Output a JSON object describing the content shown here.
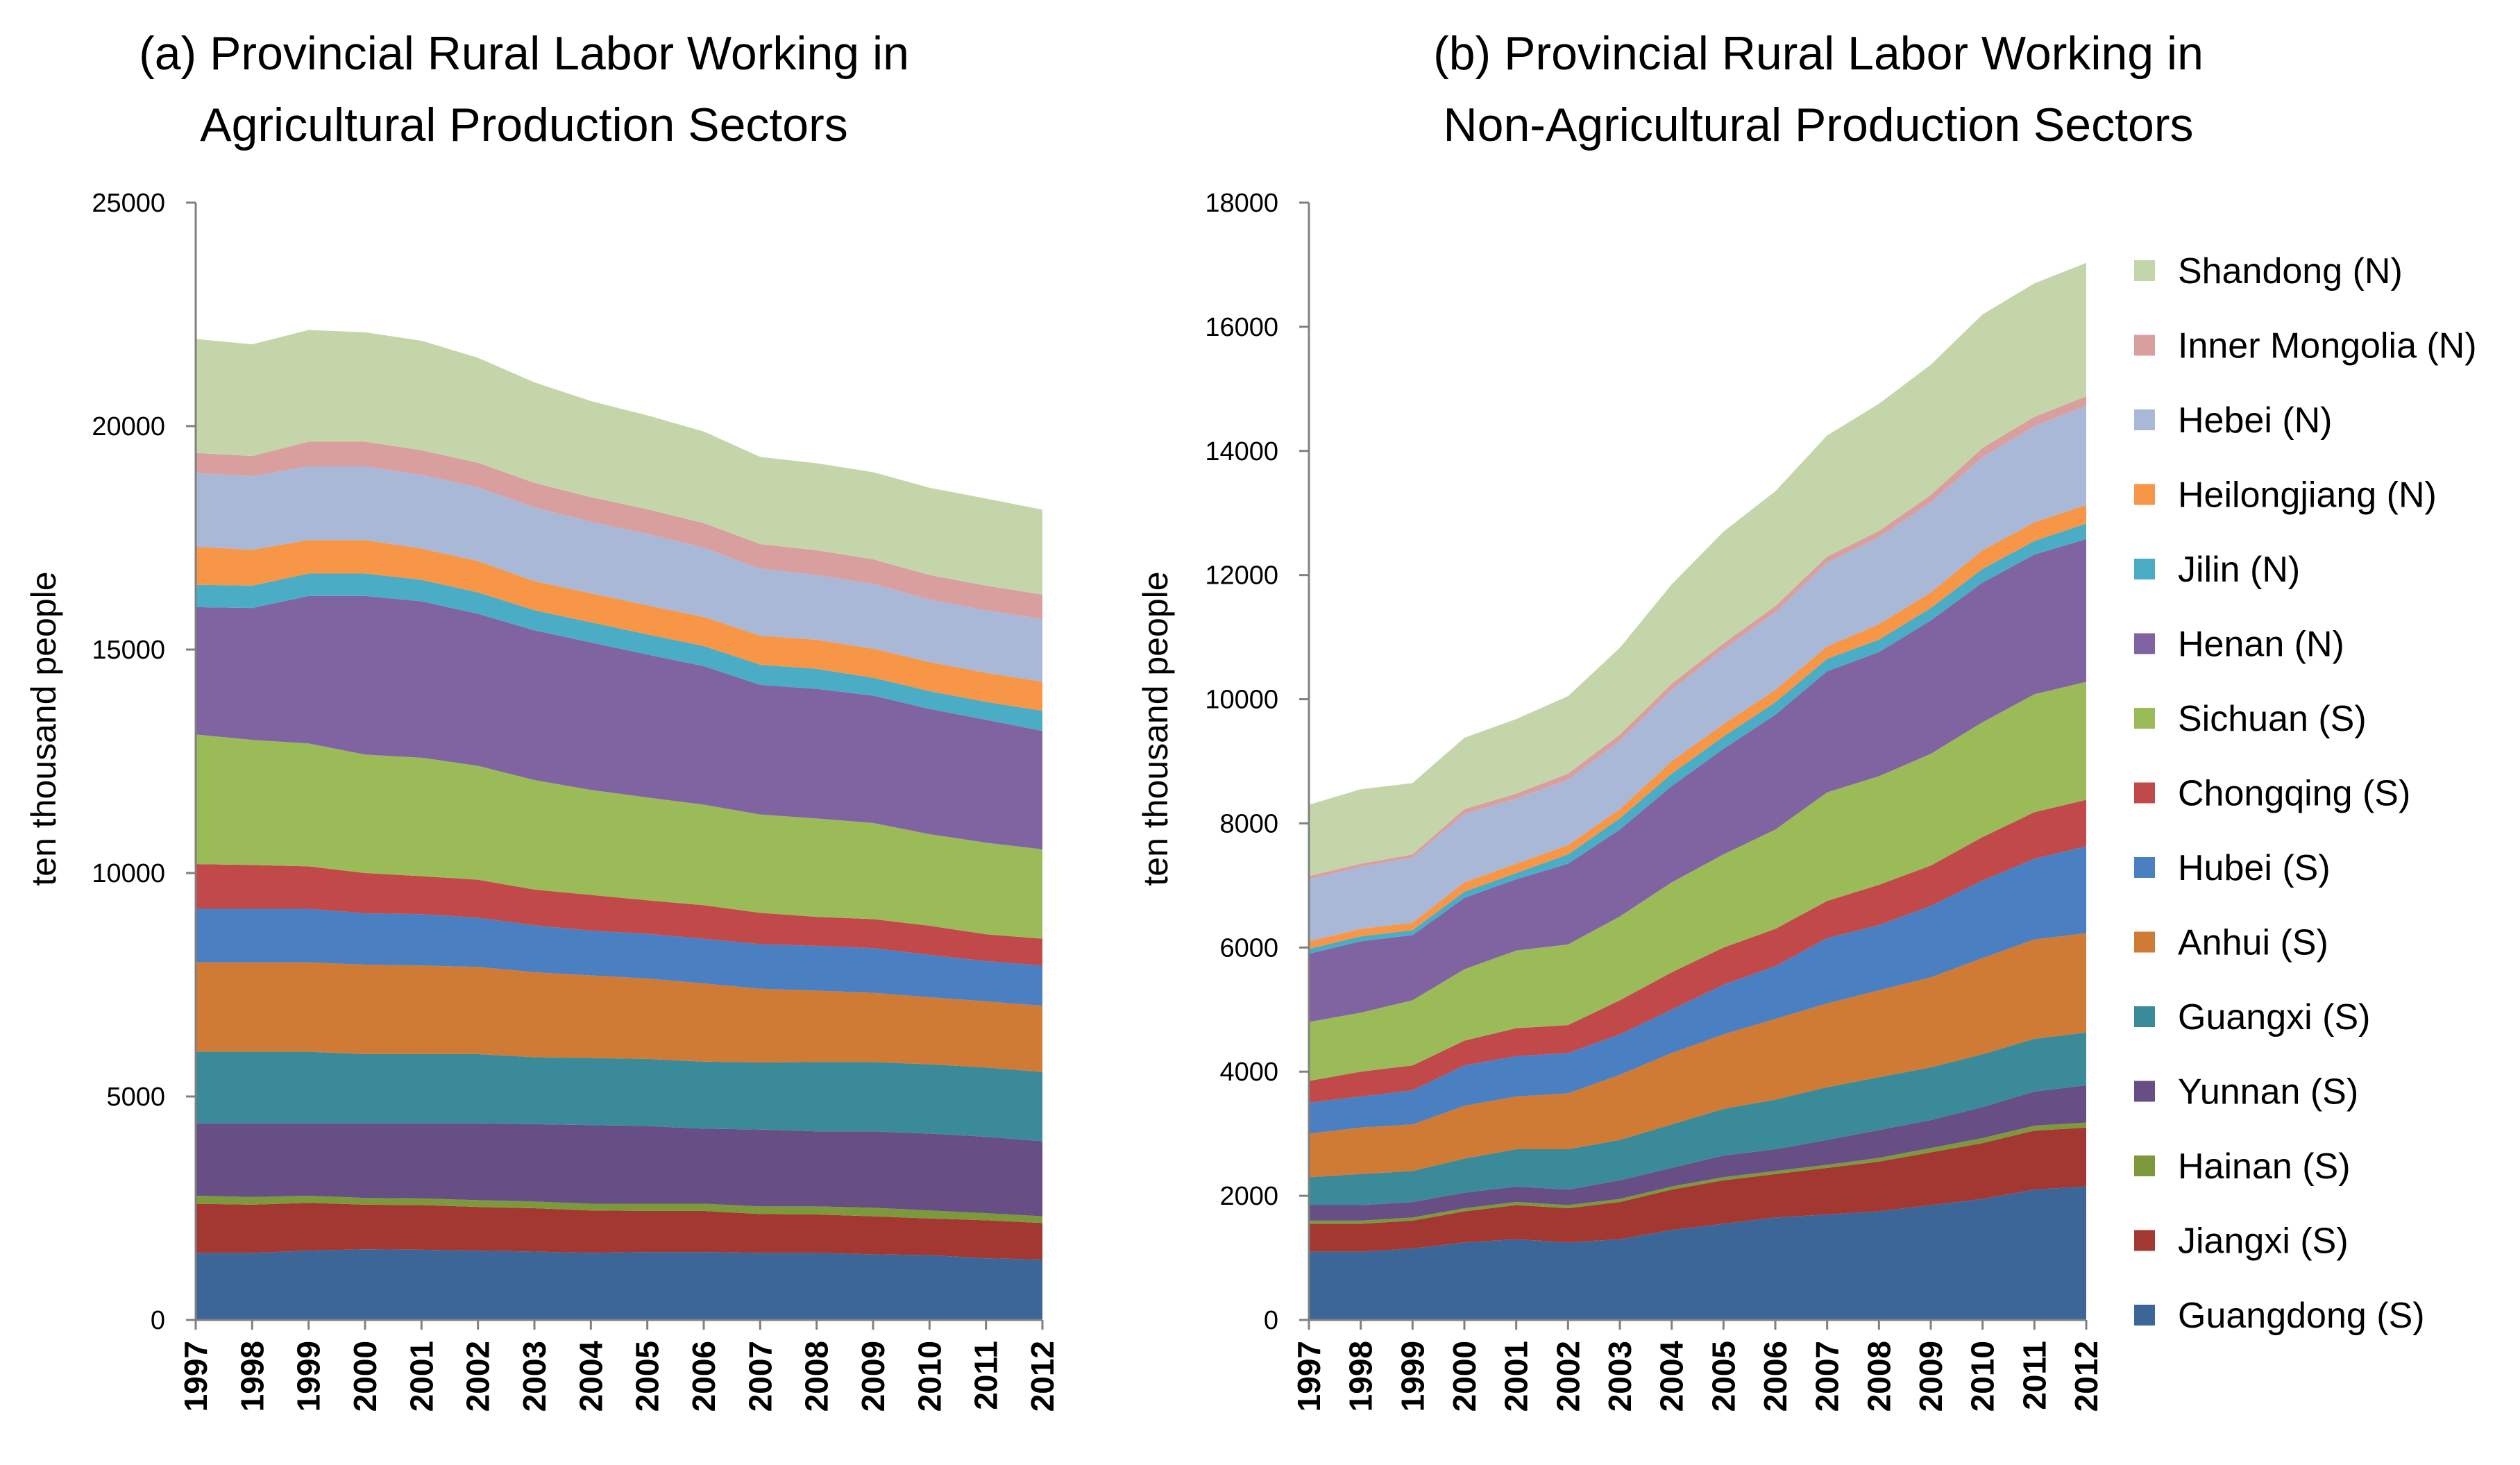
{
  "chart_data": [
    {
      "type": "area",
      "stacked": true,
      "title_lines": [
        "(a) Provincial Rural Labor Working in",
        "Agricultural Production Sectors"
      ],
      "ylabel": "ten  thousand people",
      "ylim": [
        0,
        25000
      ],
      "yticks": [
        0,
        5000,
        10000,
        15000,
        20000,
        25000
      ],
      "x": [
        "1997",
        "1998",
        "1999",
        "2000",
        "2001",
        "2002",
        "2003",
        "2004",
        "2005",
        "2006",
        "2007",
        "2008",
        "2009",
        "2010",
        "2011",
        "2012"
      ],
      "series": [
        {
          "name": "Guangdong (S)",
          "values": [
            1500,
            1500,
            1550,
            1580,
            1570,
            1550,
            1530,
            1500,
            1520,
            1520,
            1500,
            1500,
            1470,
            1450,
            1380,
            1350
          ]
        },
        {
          "name": "Jiangxi (S)",
          "values": [
            1100,
            1080,
            1070,
            1000,
            1000,
            980,
            970,
            950,
            920,
            920,
            870,
            860,
            850,
            820,
            850,
            820
          ]
        },
        {
          "name": "Hainan (S)",
          "values": [
            180,
            170,
            160,
            150,
            150,
            150,
            150,
            150,
            160,
            160,
            170,
            180,
            190,
            180,
            160,
            150
          ]
        },
        {
          "name": "Yunnan (S)",
          "values": [
            1620,
            1650,
            1620,
            1670,
            1680,
            1720,
            1730,
            1760,
            1740,
            1680,
            1720,
            1680,
            1710,
            1720,
            1710,
            1680
          ]
        },
        {
          "name": "Guangxi (S)",
          "values": [
            1600,
            1600,
            1600,
            1550,
            1550,
            1550,
            1500,
            1500,
            1500,
            1500,
            1500,
            1550,
            1550,
            1550,
            1550,
            1550
          ]
        },
        {
          "name": "Anhui (S)",
          "values": [
            2000,
            2000,
            2000,
            2000,
            1980,
            1950,
            1900,
            1850,
            1800,
            1750,
            1650,
            1600,
            1550,
            1500,
            1480,
            1480
          ]
        },
        {
          "name": "Hubei (S)",
          "values": [
            1200,
            1200,
            1200,
            1150,
            1150,
            1100,
            1050,
            1000,
            1000,
            1000,
            1000,
            1000,
            1000,
            950,
            900,
            900
          ]
        },
        {
          "name": "Chongqing (S)",
          "values": [
            1000,
            980,
            950,
            900,
            850,
            850,
            800,
            800,
            750,
            750,
            700,
            650,
            650,
            650,
            600,
            600
          ]
        },
        {
          "name": "Sichuan (S)",
          "values": [
            2900,
            2800,
            2750,
            2650,
            2650,
            2550,
            2450,
            2350,
            2300,
            2250,
            2200,
            2200,
            2150,
            2050,
            2050,
            2000
          ]
        },
        {
          "name": "Henan (N)",
          "values": [
            2850,
            2950,
            3300,
            3550,
            3500,
            3400,
            3350,
            3300,
            3200,
            3100,
            2900,
            2900,
            2850,
            2800,
            2750,
            2650
          ]
        },
        {
          "name": "Jilin (N)",
          "values": [
            500,
            500,
            500,
            500,
            480,
            480,
            450,
            450,
            450,
            450,
            450,
            450,
            400,
            400,
            400,
            450
          ]
        },
        {
          "name": "Heilongjiang (N)",
          "values": [
            850,
            800,
            750,
            750,
            700,
            700,
            650,
            650,
            650,
            650,
            650,
            650,
            650,
            650,
            650,
            650
          ]
        },
        {
          "name": "Hebei (N)",
          "values": [
            1650,
            1650,
            1650,
            1650,
            1650,
            1650,
            1650,
            1600,
            1600,
            1550,
            1500,
            1450,
            1450,
            1400,
            1400,
            1400
          ]
        },
        {
          "name": "Inner Mongolia (N)",
          "values": [
            450,
            450,
            550,
            550,
            550,
            550,
            550,
            550,
            550,
            550,
            550,
            550,
            550,
            550,
            550,
            550
          ]
        },
        {
          "name": "Shandong (N)",
          "values": [
            2550,
            2500,
            2500,
            2450,
            2450,
            2350,
            2250,
            2150,
            2100,
            2050,
            1950,
            1950,
            1950,
            1950,
            1950,
            1900
          ]
        }
      ]
    },
    {
      "type": "area",
      "stacked": true,
      "title_lines": [
        "(b) Provincial Rural Labor Working in",
        "Non-Agricultural Production Sectors"
      ],
      "ylabel": "ten  thousand people",
      "ylim": [
        0,
        18000
      ],
      "yticks": [
        0,
        2000,
        4000,
        6000,
        8000,
        10000,
        12000,
        14000,
        16000,
        18000
      ],
      "x": [
        "1997",
        "1998",
        "1999",
        "2000",
        "2001",
        "2002",
        "2003",
        "2004",
        "2005",
        "2006",
        "2007",
        "2008",
        "2009",
        "2010",
        "2011",
        "2012"
      ],
      "series": [
        {
          "name": "Guangdong (S)",
          "values": [
            1100,
            1100,
            1150,
            1250,
            1300,
            1250,
            1300,
            1450,
            1550,
            1650,
            1700,
            1750,
            1850,
            1950,
            2100,
            2150
          ]
        },
        {
          "name": "Jiangxi (S)",
          "values": [
            450,
            450,
            450,
            500,
            550,
            550,
            600,
            650,
            700,
            700,
            750,
            800,
            850,
            900,
            950,
            950
          ]
        },
        {
          "name": "Hainan (S)",
          "values": [
            50,
            50,
            50,
            50,
            50,
            50,
            50,
            50,
            50,
            50,
            50,
            60,
            70,
            80,
            80,
            80
          ]
        },
        {
          "name": "Yunnan (S)",
          "values": [
            250,
            250,
            250,
            250,
            250,
            250,
            300,
            300,
            350,
            350,
            400,
            450,
            450,
            500,
            550,
            600
          ]
        },
        {
          "name": "Guangxi (S)",
          "values": [
            450,
            500,
            500,
            550,
            600,
            650,
            650,
            700,
            750,
            800,
            850,
            850,
            850,
            850,
            850,
            850
          ]
        },
        {
          "name": "Anhui (S)",
          "values": [
            700,
            750,
            750,
            850,
            850,
            900,
            1050,
            1150,
            1200,
            1300,
            1350,
            1400,
            1450,
            1550,
            1600,
            1600
          ]
        },
        {
          "name": "Hubei (S)",
          "values": [
            500,
            500,
            550,
            650,
            650,
            650,
            650,
            700,
            800,
            850,
            1050,
            1050,
            1150,
            1250,
            1300,
            1400
          ]
        },
        {
          "name": "Chongqing (S)",
          "values": [
            350,
            400,
            400,
            400,
            450,
            450,
            550,
            600,
            600,
            600,
            600,
            650,
            650,
            700,
            750,
            750
          ]
        },
        {
          "name": "Sichuan (S)",
          "values": [
            950,
            950,
            1050,
            1150,
            1250,
            1300,
            1350,
            1450,
            1500,
            1600,
            1750,
            1750,
            1800,
            1850,
            1900,
            1900
          ]
        },
        {
          "name": "Henan (N)",
          "values": [
            1100,
            1150,
            1050,
            1150,
            1150,
            1300,
            1400,
            1550,
            1700,
            1850,
            1950,
            2000,
            2150,
            2250,
            2250,
            2300
          ]
        },
        {
          "name": "Jilin (N)",
          "values": [
            80,
            80,
            80,
            100,
            100,
            150,
            180,
            200,
            200,
            200,
            200,
            200,
            200,
            220,
            220,
            250
          ]
        },
        {
          "name": "Heilongjiang (N)",
          "values": [
            120,
            120,
            120,
            150,
            150,
            150,
            150,
            200,
            200,
            200,
            200,
            250,
            250,
            300,
            300,
            300
          ]
        },
        {
          "name": "Hebei (N)",
          "values": [
            1000,
            1000,
            1050,
            1100,
            1050,
            1050,
            1100,
            1150,
            1200,
            1250,
            1350,
            1400,
            1450,
            1500,
            1550,
            1600
          ]
        },
        {
          "name": "Inner Mongolia (N)",
          "values": [
            50,
            50,
            50,
            80,
            80,
            100,
            100,
            100,
            100,
            100,
            100,
            100,
            120,
            150,
            150,
            150
          ]
        },
        {
          "name": "Shandong (N)",
          "values": [
            1150,
            1200,
            1150,
            1150,
            1200,
            1250,
            1400,
            1600,
            1800,
            1850,
            1950,
            2050,
            2100,
            2150,
            2150,
            2150
          ]
        }
      ]
    }
  ],
  "legend": {
    "placement": "right",
    "order": [
      "Shandong (N)",
      "Inner Mongolia (N)",
      "Hebei (N)",
      "Heilongjiang (N)",
      "Jilin (N)",
      "Henan (N)",
      "Sichuan (S)",
      "Chongqing (S)",
      "Hubei (S)",
      "Anhui (S)",
      "Guangxi (S)",
      "Yunnan (S)",
      "Hainan (S)",
      "Jiangxi (S)",
      "Guangdong (S)"
    ]
  },
  "colors": {
    "Guangdong (S)": "#3d6698",
    "Jiangxi (S)": "#a33833",
    "Hainan (S)": "#7c9a3c",
    "Yunnan (S)": "#674f85",
    "Guangxi (S)": "#3a8a9a",
    "Anhui (S)": "#cf7a35",
    "Hubei (S)": "#4a7fc1",
    "Chongqing (S)": "#c2494a",
    "Sichuan (S)": "#9bbb59",
    "Henan (N)": "#8064a2",
    "Jilin (N)": "#4bacc6",
    "Heilongjiang (N)": "#f79646",
    "Hebei (N)": "#a9b8d6",
    "Inner Mongolia (N)": "#d99f9f",
    "Shandong (N)": "#c4d6a9"
  }
}
